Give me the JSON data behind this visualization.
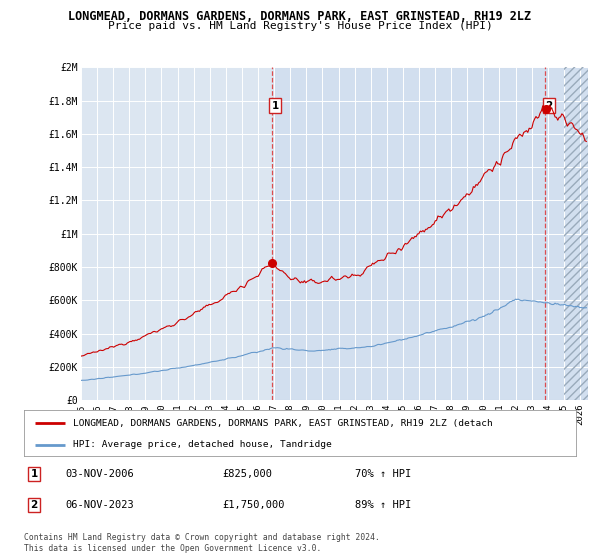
{
  "title1": "LONGMEAD, DORMANS GARDENS, DORMANS PARK, EAST GRINSTEAD, RH19 2LZ",
  "title2": "Price paid vs. HM Land Registry's House Price Index (HPI)",
  "bg_color": "#ffffff",
  "plot_bg_color": "#dce6f1",
  "shaded_region_color": "#c8d8ee",
  "grid_color": "#ffffff",
  "hpi_line_color": "#6699cc",
  "price_line_color": "#cc0000",
  "dashed_line_color": "#dd3333",
  "marker1_x": 2006.84,
  "marker2_x": 2023.84,
  "annotation1_date": "03-NOV-2006",
  "annotation1_price": "£825,000",
  "annotation1_hpi": "70% ↑ HPI",
  "annotation2_date": "06-NOV-2023",
  "annotation2_price": "£1,750,000",
  "annotation2_hpi": "89% ↑ HPI",
  "legend_line1": "LONGMEAD, DORMANS GARDENS, DORMANS PARK, EAST GRINSTEAD, RH19 2LZ (detach",
  "legend_line2": "HPI: Average price, detached house, Tandridge",
  "footer": "Contains HM Land Registry data © Crown copyright and database right 2024.\nThis data is licensed under the Open Government Licence v3.0.",
  "xmin": 1995.0,
  "xmax": 2026.5,
  "ymin": 0,
  "ymax": 2000000,
  "yticks": [
    0,
    200000,
    400000,
    600000,
    800000,
    1000000,
    1200000,
    1400000,
    1600000,
    1800000,
    2000000
  ],
  "ytick_labels": [
    "£0",
    "£200K",
    "£400K",
    "£600K",
    "£800K",
    "£1M",
    "£1.2M",
    "£1.4M",
    "£1.6M",
    "£1.8M",
    "£2M"
  ],
  "xticks": [
    1995,
    1996,
    1997,
    1998,
    1999,
    2000,
    2001,
    2002,
    2003,
    2004,
    2005,
    2006,
    2007,
    2008,
    2009,
    2010,
    2011,
    2012,
    2013,
    2014,
    2015,
    2016,
    2017,
    2018,
    2019,
    2020,
    2021,
    2022,
    2023,
    2024,
    2025,
    2026
  ],
  "shade_from": 2007.0,
  "hatch_from": 2025.0
}
